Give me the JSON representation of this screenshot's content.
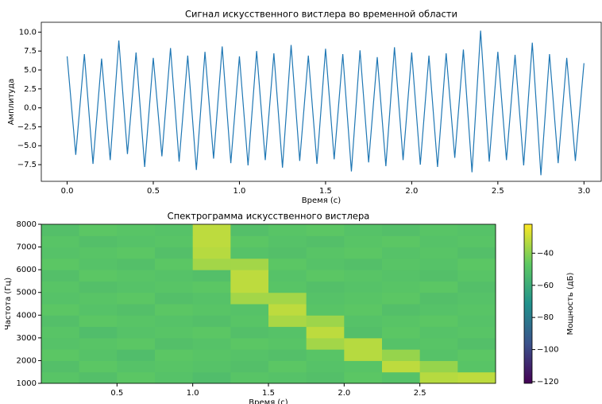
{
  "chart_data": [
    {
      "type": "line",
      "title": "Сигнал искусственного вистлера во временной области",
      "xlabel": "Время (с)",
      "ylabel": "Амплитуда",
      "x": [
        0,
        0.05,
        0.1,
        0.15,
        0.2,
        0.25,
        0.3,
        0.35,
        0.4,
        0.45,
        0.5,
        0.55,
        0.6,
        0.65,
        0.7,
        0.75,
        0.8,
        0.85,
        0.9,
        0.95,
        1,
        1.05,
        1.1,
        1.15,
        1.2,
        1.25,
        1.3,
        1.35,
        1.4,
        1.45,
        1.5,
        1.55,
        1.6,
        1.65,
        1.7,
        1.75,
        1.8,
        1.85,
        1.9,
        1.95,
        2,
        2.05,
        2.1,
        2.15,
        2.2,
        2.25,
        2.3,
        2.35,
        2.4,
        2.45,
        2.5,
        2.55,
        2.6,
        2.65,
        2.7,
        2.75,
        2.8,
        2.85,
        2.9,
        2.95,
        3
      ],
      "series": [
        {
          "color": "#1f77b4",
          "values": [
            6.8,
            -6.2,
            7.1,
            -7.4,
            6.5,
            -6.9,
            8.9,
            -6.1,
            7.3,
            -7.8,
            6.6,
            -6.4,
            7.9,
            -7.1,
            6.9,
            -8.2,
            7.4,
            -6.7,
            8.1,
            -7.3,
            6.8,
            -7.6,
            7.5,
            -6.9,
            7.2,
            -7.9,
            8.3,
            -7.0,
            6.9,
            -7.4,
            7.8,
            -6.8,
            7.1,
            -8.4,
            7.6,
            -7.2,
            6.7,
            -7.7,
            8.0,
            -6.9,
            7.3,
            -7.5,
            6.9,
            -7.8,
            7.2,
            -6.6,
            7.7,
            -8.5,
            10.2,
            -7.1,
            7.4,
            -6.9,
            7.0,
            -7.6,
            8.6,
            -8.9,
            7.1,
            -7.3,
            6.6,
            -7.0,
            5.9
          ]
        }
      ],
      "xlim": [
        -0.15,
        3.1
      ],
      "xticks": [
        {
          "value": 0,
          "label": "0.0"
        },
        0.5,
        {
          "value": 1,
          "label": "1.0"
        },
        1.5,
        {
          "value": 2,
          "label": "2.0"
        },
        2.5,
        {
          "value": 3,
          "label": "3.0"
        }
      ],
      "ylim": [
        -9.7,
        11.3
      ],
      "yticks": [
        {
          "value": -7.5,
          "label": "−7.5"
        },
        {
          "value": -5,
          "label": "−5.0"
        },
        {
          "value": -2.5,
          "label": "−2.5"
        },
        {
          "value": 0,
          "label": "0.0"
        },
        2.5,
        {
          "value": 5,
          "label": "5.0"
        },
        7.5,
        {
          "value": 10,
          "label": "10.0"
        }
      ]
    },
    {
      "type": "heatmap",
      "title": "Спектрограмма искусственного вистлера",
      "xlabel": "Время (с)",
      "ylabel": "Частота (Гц)",
      "x_edges": [
        0,
        0.25,
        0.5,
        0.75,
        1,
        1.25,
        1.5,
        1.75,
        2,
        2.25,
        2.5,
        2.75,
        3
      ],
      "y_edges": [
        1000,
        1500,
        2000,
        2500,
        3000,
        3500,
        4000,
        4500,
        5000,
        5500,
        6000,
        6500,
        7000,
        7500,
        8000
      ],
      "z": [
        [
          -49,
          -51,
          -48,
          -50,
          -52,
          -49,
          -50,
          -51,
          -48,
          -50,
          -33,
          -32
        ],
        [
          -51,
          -48,
          -50,
          -49,
          -50,
          -51,
          -48,
          -50,
          -49,
          -32,
          -38,
          -49
        ],
        [
          -48,
          -50,
          -52,
          -48,
          -49,
          -50,
          -51,
          -49,
          -33,
          -38,
          -50,
          -48
        ],
        [
          -50,
          -49,
          -48,
          -51,
          -50,
          -48,
          -49,
          -36,
          -33,
          -50,
          -49,
          -51
        ],
        [
          -49,
          -52,
          -50,
          -49,
          -48,
          -51,
          -50,
          -32,
          -51,
          -48,
          -50,
          -49
        ],
        [
          -51,
          -48,
          -49,
          -50,
          -51,
          -49,
          -35,
          -37,
          -50,
          -49,
          -48,
          -50
        ],
        [
          -48,
          -50,
          -51,
          -48,
          -49,
          -50,
          -32,
          -49,
          -48,
          -51,
          -50,
          -49
        ],
        [
          -50,
          -49,
          -48,
          -51,
          -50,
          -36,
          -36,
          -50,
          -49,
          -48,
          -51,
          -50
        ],
        [
          -49,
          -51,
          -50,
          -49,
          -48,
          -32,
          -49,
          -51,
          -50,
          -49,
          -48,
          -51
        ],
        [
          -51,
          -48,
          -49,
          -50,
          -51,
          -32,
          -50,
          -48,
          -49,
          -50,
          -51,
          -49
        ],
        [
          -48,
          -50,
          -51,
          -48,
          -36,
          -36,
          -48,
          -50,
          -51,
          -49,
          -50,
          -48
        ],
        [
          -50,
          -49,
          -48,
          -51,
          -33,
          -50,
          -51,
          -49,
          -48,
          -50,
          -49,
          -51
        ],
        [
          -49,
          -51,
          -50,
          -49,
          -32,
          -48,
          -50,
          -51,
          -49,
          -48,
          -50,
          -49
        ],
        [
          -51,
          -48,
          -49,
          -50,
          -32,
          -51,
          -49,
          -48,
          -50,
          -51,
          -49,
          -50
        ]
      ],
      "colormap": "viridis",
      "clim": [
        -121,
        -22
      ],
      "colorbar_label": "Мощность (дБ)",
      "colorbar_ticks": [
        {
          "value": -120,
          "label": "−120"
        },
        {
          "value": -100,
          "label": "−100"
        },
        {
          "value": -80,
          "label": "−80"
        },
        {
          "value": -60,
          "label": "−60"
        },
        {
          "value": -40,
          "label": "−40"
        }
      ],
      "xlim": [
        0,
        3
      ],
      "xticks": [
        0.5,
        {
          "value": 1,
          "label": "1.0"
        },
        1.5,
        {
          "value": 2,
          "label": "2.0"
        },
        2.5
      ],
      "ylim": [
        1000,
        8000
      ],
      "yticks": [
        1000,
        2000,
        3000,
        4000,
        5000,
        6000,
        7000,
        8000
      ]
    }
  ]
}
